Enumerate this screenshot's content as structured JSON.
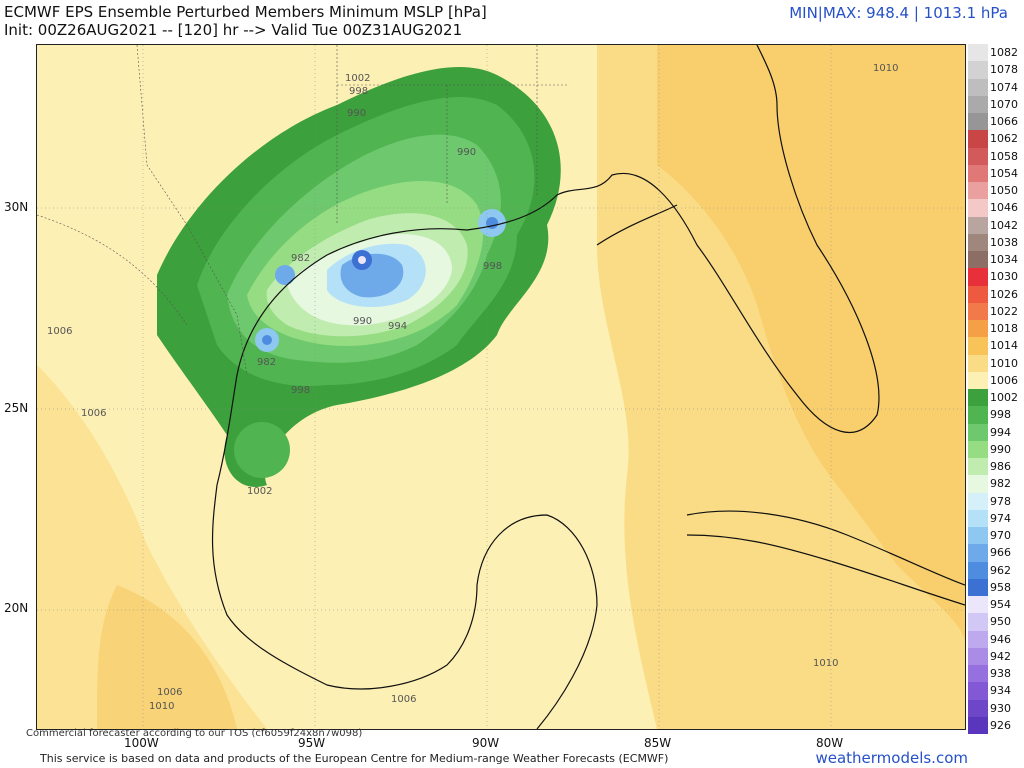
{
  "header": {
    "title": "ECMWF EPS Ensemble Perturbed Members Minimum MSLP [hPa]",
    "init_line": "Init: 00Z26AUG2021 -- [120] hr --> Valid Tue 00Z31AUG2021",
    "minmax": "MIN|MAX: 948.4 | 1013.1 hPa"
  },
  "axes": {
    "lat_labels": [
      "30N",
      "25N",
      "20N"
    ],
    "lon_labels": [
      "100W",
      "95W",
      "90W",
      "85W",
      "80W"
    ]
  },
  "contour_labels": [
    "1002",
    "998",
    "990",
    "990",
    "982",
    "990",
    "994",
    "998",
    "982",
    "998",
    "1002",
    "1006",
    "1006",
    "1006",
    "1010",
    "1010",
    "1006",
    "1010"
  ],
  "legend": {
    "levels": [
      "1082",
      "1078",
      "1074",
      "1070",
      "1066",
      "1062",
      "1058",
      "1054",
      "1050",
      "1046",
      "1042",
      "1038",
      "1034",
      "1030",
      "1026",
      "1022",
      "1018",
      "1014",
      "1010",
      "1006",
      "1002",
      "998",
      "994",
      "990",
      "986",
      "982",
      "978",
      "974",
      "970",
      "966",
      "962",
      "958",
      "954",
      "950",
      "946",
      "942",
      "938",
      "934",
      "930",
      "926"
    ],
    "colors": [
      "#e6e6e6",
      "#d2d2d2",
      "#bebebe",
      "#aaaaaa",
      "#969696",
      "#c84646",
      "#d25a5a",
      "#e07878",
      "#eba0a0",
      "#f5c8c8",
      "#b9a5a0",
      "#a0877d",
      "#8c6e64",
      "#e8303a",
      "#ee5a40",
      "#f27a4a",
      "#f5a046",
      "#f8c45a",
      "#fadc86",
      "#fdf0b4",
      "#3ca03c",
      "#50b450",
      "#6ec86e",
      "#96dc82",
      "#c0ecb0",
      "#e6f8e0",
      "#d6f0fa",
      "#b4e0f8",
      "#8ec8f0",
      "#6eaaea",
      "#4e8ce0",
      "#3c70d2",
      "#ebe6fa",
      "#d2c8f5",
      "#bea8ee",
      "#aa8ce6",
      "#9670de",
      "#8258d4",
      "#6e46c8",
      "#5a36bc"
    ]
  },
  "credit": "Commercial forecaster according to our TOS (cf6059f24x8n7w098)",
  "footer": "This service is based on data and products of the European Centre for Medium-range Weather Forecasts (ECMWF)",
  "brand": "weathermodels.com"
}
